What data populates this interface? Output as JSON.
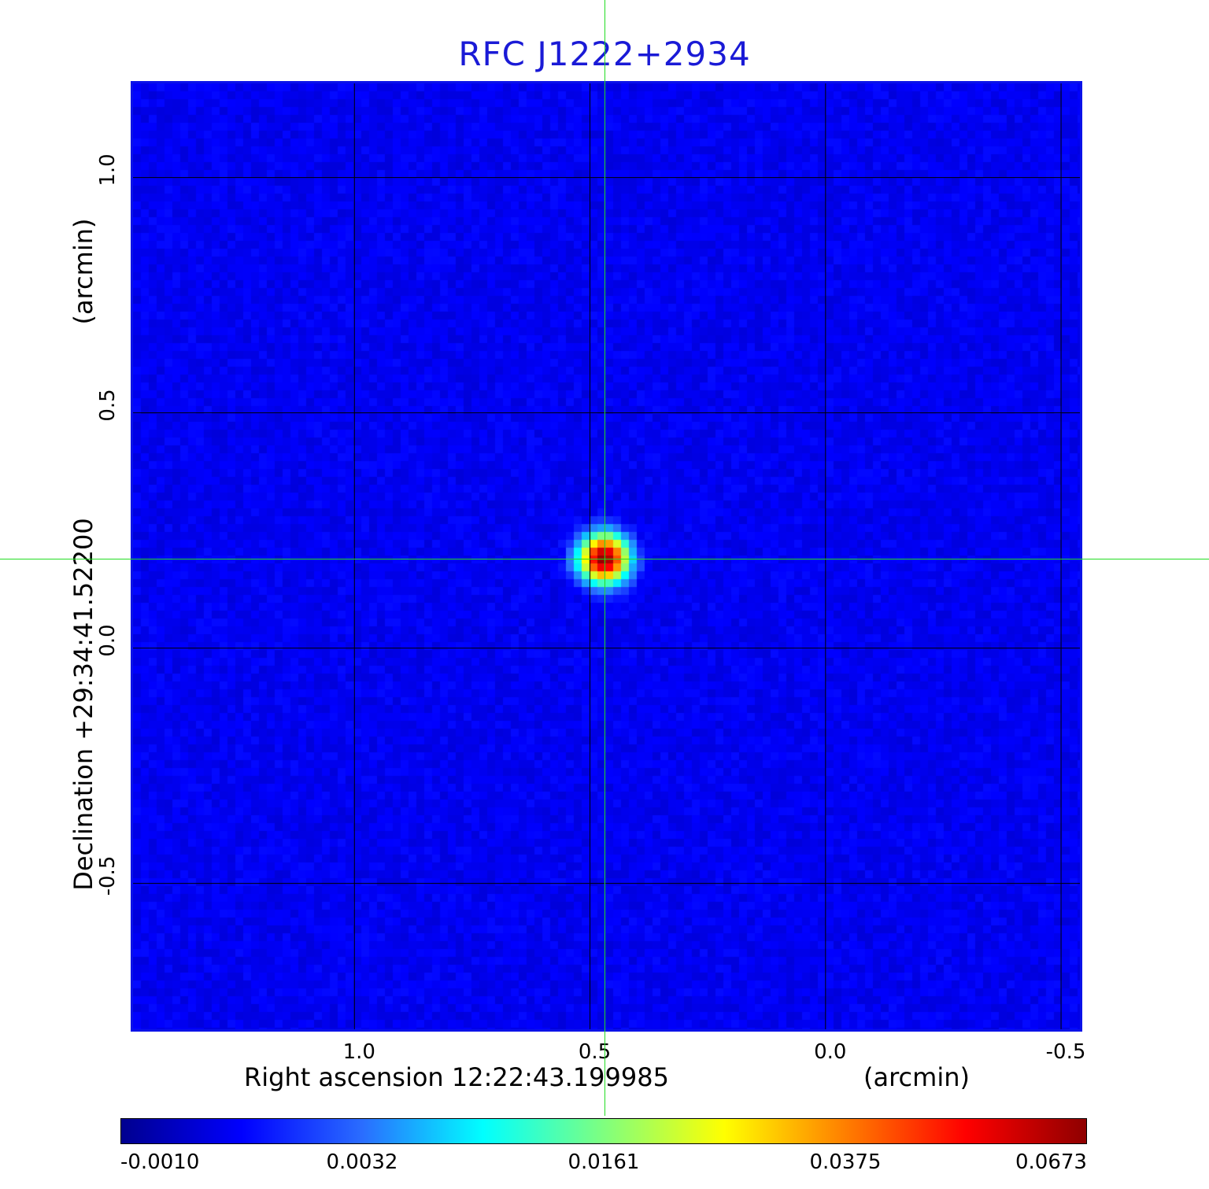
{
  "title": "RFC J1222+2934",
  "colors": {
    "title": "#1a1ad6",
    "frame": "#0a12e8",
    "crosshair": "#22dd22",
    "colormap": [
      "#00008f",
      "#0000ff",
      "#2a6dff",
      "#00ffff",
      "#7fff7f",
      "#ffff00",
      "#ff7f00",
      "#ff0000",
      "#8f0000"
    ]
  },
  "chart_data": {
    "type": "heatmap",
    "title": "RFC J1222+2934",
    "xlabel": "Right ascension  12:22:43.199985",
    "xunit": "(arcmin)",
    "ylabel": "Declination  +29:34:41.52200",
    "yunit": "(arcmin)",
    "x_ticks": [
      "1.0",
      "0.5",
      "0.0",
      "-0.5"
    ],
    "y_ticks": [
      "1.0",
      "0.5",
      "0.0",
      "-0.5"
    ],
    "x_tick_values": [
      1.0,
      0.5,
      0.0,
      -0.5
    ],
    "y_tick_values": [
      1.0,
      0.5,
      0.0,
      -0.5
    ],
    "xlim": [
      1.47,
      -0.54
    ],
    "ylim": [
      -0.81,
      1.2
    ],
    "grid": true,
    "source_peak": {
      "x": 0.47,
      "y": 0.19,
      "value": 0.0673
    },
    "crosshair": {
      "x": 0.47,
      "y": 0.19
    },
    "colorbar": {
      "colormap": "jet",
      "tick_labels": [
        "-0.0010",
        "0.0032",
        "0.0161",
        "0.0375",
        "0.0673"
      ],
      "tick_values": [
        -0.001,
        0.0032,
        0.0161,
        0.0375,
        0.0673
      ]
    }
  }
}
